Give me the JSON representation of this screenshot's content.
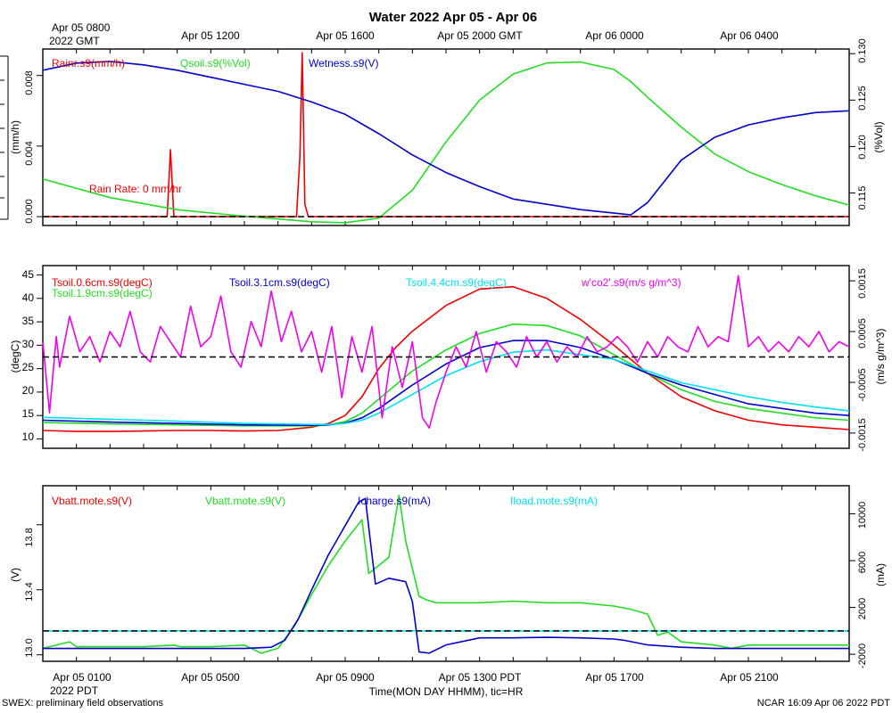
{
  "title": "Water 2022 Apr 05 - Apr 06",
  "footer": {
    "left": "SWEX: preliminary field observations",
    "right": "NCAR 16:09 Apr 06 2022 PDT",
    "xlabel": "Time(MON DAY HHMM), tic=HR",
    "xunit": "2022 PDT"
  },
  "top_time_axis": {
    "first_label": [
      "Apr 05 0800",
      "2022 GMT"
    ],
    "labels": [
      "Apr 05 1200",
      "Apr 05 1600",
      "Apr 05 2000 GMT",
      "Apr 06 0000",
      "Apr 06 0400"
    ]
  },
  "bottom_time_axis": {
    "labels": [
      "Apr 05 0100",
      "Apr 05 0500",
      "Apr 05 0900",
      "Apr 05 1300 PDT",
      "Apr 05 1700",
      "Apr 05 2100"
    ]
  },
  "chart_data": [
    {
      "type": "line",
      "panel": "water",
      "x_unit": "hours since Apr 05 0000 PDT",
      "xlim": [
        0,
        24
      ],
      "left_axis": {
        "label": "(mm/h)",
        "ylim": [
          -0.0005,
          0.0095
        ],
        "ticks": [
          "0.000",
          "0.004",
          "0.008"
        ],
        "tick_values": [
          0,
          0.004,
          0.008
        ]
      },
      "right_axis": {
        "label": "(%Vol)",
        "ylim": [
          0.1115,
          0.1305
        ],
        "ticks": [
          "0.115",
          "0.120",
          "0.125",
          "0.130"
        ],
        "tick_values": [
          0.115,
          0.12,
          0.125,
          0.13
        ]
      },
      "zero_line": 0,
      "annotation": "Rain Rate: 0 mm/hr",
      "series": [
        {
          "name": "Rainr.s9(mm/h)",
          "color": "#ee0000",
          "axis": "left",
          "x": [
            0,
            3.7,
            3.8,
            3.9,
            4.0,
            7.55,
            7.65,
            7.72,
            7.8,
            7.9,
            24
          ],
          "y": [
            0,
            0,
            0.0038,
            0,
            0,
            0,
            0.0034,
            0.0093,
            0.0007,
            0,
            0
          ]
        },
        {
          "name": "Qsoil.s9(%Vol)",
          "color": "#22dd22",
          "axis": "right",
          "x": [
            0,
            2,
            4,
            6,
            8,
            9,
            10,
            11,
            12,
            13,
            14,
            15,
            16,
            17,
            17.5,
            18,
            19,
            20,
            21,
            22,
            23,
            24
          ],
          "y": [
            0.1165,
            0.1145,
            0.1132,
            0.1125,
            0.1119,
            0.1118,
            0.1123,
            0.1153,
            0.1205,
            0.125,
            0.1278,
            0.129,
            0.1291,
            0.1283,
            0.127,
            0.1253,
            0.1221,
            0.1192,
            0.1173,
            0.1159,
            0.1147,
            0.1137
          ]
        },
        {
          "name": "Wetness.s9(V)",
          "color": "#0000cc",
          "axis": "left",
          "x": [
            0,
            1,
            2,
            3,
            4,
            5,
            6,
            7,
            8,
            9,
            10,
            11,
            12,
            13,
            14,
            15,
            16,
            17,
            17.5,
            18,
            19,
            20,
            21,
            22,
            23,
            24
          ],
          "y": [
            0.0083,
            0.0087,
            0.0088,
            0.0086,
            0.0083,
            0.0079,
            0.0075,
            0.0071,
            0.0065,
            0.0058,
            0.0047,
            0.0035,
            0.0025,
            0.0017,
            0.001,
            0.0007,
            0.0004,
            0.0002,
            0.0001,
            0.0008,
            0.0032,
            0.0045,
            0.0052,
            0.0056,
            0.0059,
            0.006
          ]
        }
      ]
    },
    {
      "type": "line",
      "panel": "temperature",
      "x_unit": "hours since Apr 05 0000 PDT",
      "xlim": [
        0,
        24
      ],
      "left_axis": {
        "label": "(degC)",
        "ylim": [
          8,
          47
        ],
        "ticks": [
          "10",
          "15",
          "20",
          "25",
          "30",
          "35",
          "40",
          "45"
        ],
        "tick_values": [
          10,
          15,
          20,
          25,
          30,
          35,
          40,
          45
        ]
      },
      "right_axis": {
        "label": "(m/s g/m^3)",
        "ylim": [
          -0.0018,
          0.0018
        ],
        "ticks": [
          "-0.0015",
          "-0.0005",
          "0.0005",
          "0.0015"
        ],
        "tick_values": [
          -0.0015,
          -0.0005,
          0.0005,
          0.0015
        ]
      },
      "zero_line": 0,
      "series": [
        {
          "name": "Tsoil.0.6cm.s9(degC)",
          "color": "#ee0000",
          "axis": "left",
          "x": [
            0,
            1,
            2,
            3,
            4,
            5,
            6,
            7,
            8,
            8.5,
            9,
            9.5,
            10,
            10.5,
            11,
            12,
            13,
            14,
            15,
            16,
            17,
            18,
            19,
            20,
            21,
            22,
            23,
            24
          ],
          "y": [
            11.8,
            11.6,
            11.6,
            11.7,
            11.8,
            11.8,
            11.7,
            11.8,
            12.5,
            13.3,
            15,
            19,
            25,
            29.5,
            33,
            38.5,
            42,
            42.5,
            40,
            35.5,
            30,
            24,
            19,
            16,
            14,
            13,
            12.5,
            12
          ]
        },
        {
          "name": "Tsoil.1.9cm.s9(degC)",
          "color": "#22dd22",
          "axis": "left",
          "x": [
            0,
            2,
            4,
            6,
            8,
            8.5,
            9,
            9.5,
            10,
            10.5,
            11,
            12,
            13,
            14,
            15,
            16,
            17,
            18,
            19,
            20,
            21,
            22,
            23,
            24
          ],
          "y": [
            13.5,
            13.2,
            13.0,
            12.8,
            12.8,
            13.0,
            13.7,
            15.5,
            18.5,
            21.5,
            24.5,
            29,
            32.5,
            34.5,
            34.2,
            32,
            28,
            24,
            20.5,
            18,
            16.5,
            15.5,
            14.5,
            14
          ]
        },
        {
          "name": "Tsoil.3.1cm.s9(degC)",
          "color": "#0000cc",
          "axis": "left",
          "x": [
            0,
            2,
            4,
            6,
            8,
            8.5,
            9,
            9.5,
            10,
            10.5,
            11,
            12,
            13,
            14,
            15,
            16,
            17,
            18,
            19,
            20,
            21,
            22,
            23,
            24
          ],
          "y": [
            14.0,
            13.6,
            13.3,
            13.0,
            12.9,
            13.0,
            13.4,
            14.5,
            16.5,
            19,
            21.5,
            26,
            29.5,
            31,
            31,
            29.5,
            27,
            24,
            21.5,
            19.5,
            17.5,
            16.5,
            15.5,
            15
          ]
        },
        {
          "name": "Tsoil.4.4cm.s9(degC)",
          "color": "#00e0ee",
          "axis": "left",
          "x": [
            0,
            2,
            4,
            6,
            8,
            8.5,
            9,
            9.5,
            10,
            10.5,
            11,
            12,
            13,
            14,
            15,
            16,
            17,
            18,
            19,
            20,
            21,
            22,
            23,
            24
          ],
          "y": [
            14.6,
            14.2,
            13.8,
            13.3,
            13.1,
            13.1,
            13.3,
            14,
            15.5,
            17.5,
            19.5,
            23.5,
            26.5,
            28.5,
            29,
            28,
            27,
            24.5,
            22,
            20.5,
            19,
            17.8,
            16.8,
            16
          ]
        },
        {
          "name": "w'co2'.s9(m/s g/m^3)",
          "color": "#ee00ee",
          "axis": "right",
          "x": [
            0,
            0.2,
            0.4,
            0.5,
            0.8,
            1.1,
            1.4,
            1.7,
            2.0,
            2.3,
            2.6,
            2.9,
            3.2,
            3.5,
            3.8,
            4.1,
            4.4,
            4.7,
            5.0,
            5.3,
            5.6,
            5.9,
            6.2,
            6.5,
            6.8,
            7.1,
            7.4,
            7.7,
            8.0,
            8.3,
            8.6,
            8.9,
            9.2,
            9.5,
            9.8,
            10.1,
            10.4,
            10.7,
            11.0,
            11.3,
            11.5,
            11.7,
            12.0,
            12.3,
            12.6,
            12.9,
            13.2,
            13.5,
            13.8,
            14.1,
            14.4,
            14.7,
            15.0,
            15.3,
            15.6,
            15.9,
            16.2,
            16.5,
            16.8,
            17.1,
            17.4,
            17.7,
            18.0,
            18.3,
            18.6,
            18.9,
            19.2,
            19.5,
            19.8,
            20.1,
            20.4,
            20.7,
            21.0,
            21.3,
            21.6,
            21.9,
            22.2,
            22.5,
            22.8,
            23.1,
            23.4,
            23.7,
            24
          ],
          "y": [
            0.0003,
            -0.0011,
            0.0004,
            -0.0002,
            0.0008,
            0.0001,
            0.0004,
            -0.0001,
            0.0005,
            0.0002,
            0.0009,
            0.0001,
            -0.0001,
            0.0006,
            0.0003,
            0.0,
            0.001,
            0.0002,
            0.0004,
            0.0012,
            0.0001,
            -0.0002,
            0.0007,
            0.0002,
            0.0013,
            0.0003,
            0.0009,
            0.0001,
            0.0005,
            -0.0003,
            0.0006,
            -0.0008,
            0.0004,
            -0.0003,
            0.0006,
            -0.0012,
            0.0002,
            -0.0006,
            0.0003,
            -0.0012,
            -0.0014,
            -0.0009,
            -0.0003,
            0.0002,
            -0.0002,
            0.0005,
            -0.0003,
            0.0003,
            0.0001,
            -0.0002,
            0.0004,
            0.0,
            0.0003,
            -0.0001,
            0.0002,
            0.0,
            0.0004,
            0.0001,
            0.0002,
            0.0004,
            0.0002,
            -0.0001,
            0.0003,
            0.0,
            0.0004,
            0.0002,
            0.0001,
            0.0006,
            0.0002,
            0.0004,
            0.0003,
            0.0016,
            0.0002,
            0.0004,
            0.0001,
            0.0003,
            0.0001,
            0.0004,
            0.0002,
            0.0005,
            0.0001,
            0.0003,
            0.0002
          ]
        }
      ]
    },
    {
      "type": "line",
      "panel": "power",
      "x_unit": "hours since Apr 05 0000 PDT",
      "xlim": [
        0,
        24
      ],
      "left_axis": {
        "label": "(V)",
        "ylim": [
          12.96,
          14.04
        ],
        "ticks": [
          "13.0",
          "13.4",
          "13.8"
        ],
        "tick_values": [
          13.0,
          13.4,
          13.8
        ]
      },
      "right_axis": {
        "label": "(mA)",
        "ylim": [
          -2600,
          12400
        ],
        "ticks": [
          "-2000",
          "2000",
          "6000",
          "10000"
        ],
        "tick_values": [
          -2000,
          2000,
          6000,
          10000
        ]
      },
      "zero_line": 0,
      "series": [
        {
          "name": "Vbatt.mote.s9(V)",
          "color": "#ee0000",
          "axis": "left",
          "x": [],
          "y": []
        },
        {
          "name": "Vbatt.mote.s9(V)",
          "color": "#22dd22",
          "axis": "left",
          "x": [
            0,
            0.8,
            1.0,
            2,
            3,
            3.9,
            4.1,
            5,
            6,
            6.5,
            7,
            7.5,
            8,
            8.5,
            9,
            9.5,
            9.7,
            10.0,
            10.3,
            10.6,
            10.8,
            11.2,
            11.4,
            11.7,
            12,
            13,
            14,
            15,
            16,
            17,
            17.5,
            18,
            18.3,
            18.6,
            19,
            20,
            20.5,
            21,
            22,
            23,
            24
          ],
          "y": [
            13.04,
            13.08,
            13.05,
            13.05,
            13.05,
            13.06,
            13.05,
            13.05,
            13.06,
            13.01,
            13.04,
            13.18,
            13.37,
            13.55,
            13.7,
            13.83,
            13.5,
            13.55,
            13.6,
            13.98,
            13.7,
            13.36,
            13.34,
            13.32,
            13.32,
            13.32,
            13.33,
            13.32,
            13.32,
            13.3,
            13.28,
            13.25,
            13.12,
            13.14,
            13.08,
            13.06,
            13.04,
            13.06,
            13.06,
            13.06,
            13.06
          ]
        },
        {
          "name": "Icharge.s9(mA)",
          "color": "#0000cc",
          "axis": "right",
          "x": [
            0,
            2,
            4,
            6,
            6.8,
            7.2,
            7.6,
            8,
            8.5,
            9,
            9.4,
            9.6,
            9.9,
            10.3,
            10.8,
            11.0,
            11.2,
            11.5,
            12,
            13,
            14,
            15,
            16,
            17,
            17.3,
            18,
            19,
            20,
            21,
            22,
            23,
            24
          ],
          "y": [
            -1500,
            -1500,
            -1500,
            -1500,
            -1400,
            -800,
            1000,
            3500,
            6500,
            9000,
            11000,
            11300,
            4000,
            4500,
            4200,
            2500,
            -1800,
            -1900,
            -1200,
            -600,
            -600,
            -550,
            -600,
            -700,
            -800,
            -1200,
            -1400,
            -1500,
            -1500,
            -1500,
            -1500,
            -1500
          ]
        },
        {
          "name": "Iload.mote.s9(mA)",
          "color": "#00e0ee",
          "axis": "right",
          "x": [
            0,
            24
          ],
          "y": [
            0,
            0
          ]
        }
      ]
    }
  ]
}
